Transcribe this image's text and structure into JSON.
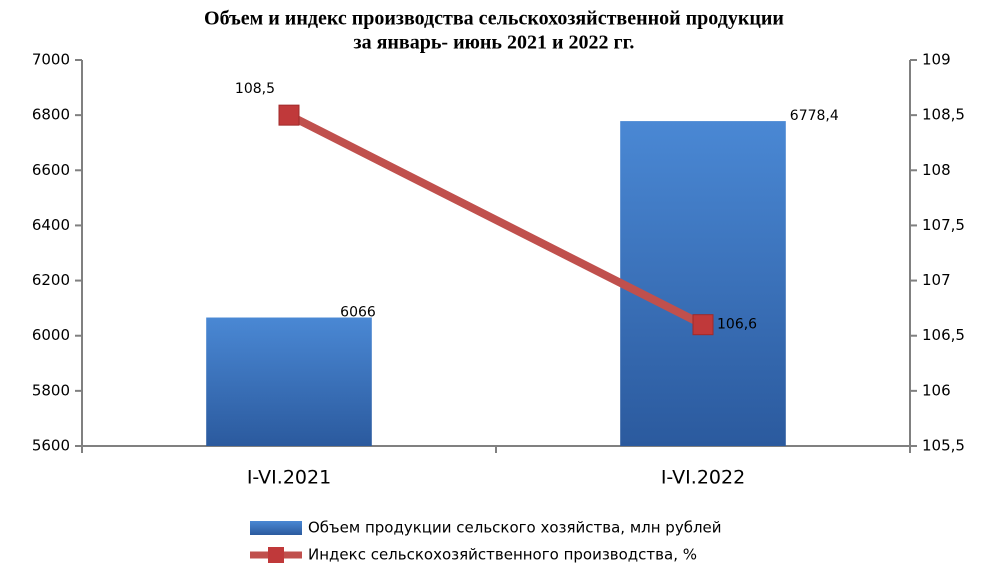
{
  "chart_data": {
    "type": "combo",
    "title": [
      "Объем и индекс производства сельскохозяйственной продукции",
      "за январь- июнь 2021 и 2022 гг."
    ],
    "categories": [
      "I-VI.2021",
      "I-VI.2022"
    ],
    "series": [
      {
        "name": "Объем продукции сельского хозяйства, млн рублей",
        "type": "bar",
        "color": "#3a73c0",
        "values": [
          6066,
          6778.4
        ],
        "value_labels": [
          "6066",
          "6778,4"
        ]
      },
      {
        "name": "Индекс сельскохозяйственного производства, %",
        "type": "line",
        "axis": "y2",
        "color": "#c0504d",
        "values": [
          108.5,
          106.6
        ],
        "value_labels": [
          "108,5",
          "106,6"
        ]
      }
    ],
    "ylim": [
      5600,
      7000
    ],
    "yticks": [
      5600,
      5800,
      6000,
      6200,
      6400,
      6600,
      6800,
      7000
    ],
    "y2lim": [
      105.5,
      109
    ],
    "y2ticks": [
      {
        "value": 105.5,
        "label": "105,5"
      },
      106,
      {
        "value": 106.5,
        "label": "106,5"
      },
      107,
      {
        "value": 107.5,
        "label": "107,5"
      },
      108,
      {
        "value": 108.5,
        "label": "108,5"
      },
      109
    ],
    "legend": "bottom"
  }
}
